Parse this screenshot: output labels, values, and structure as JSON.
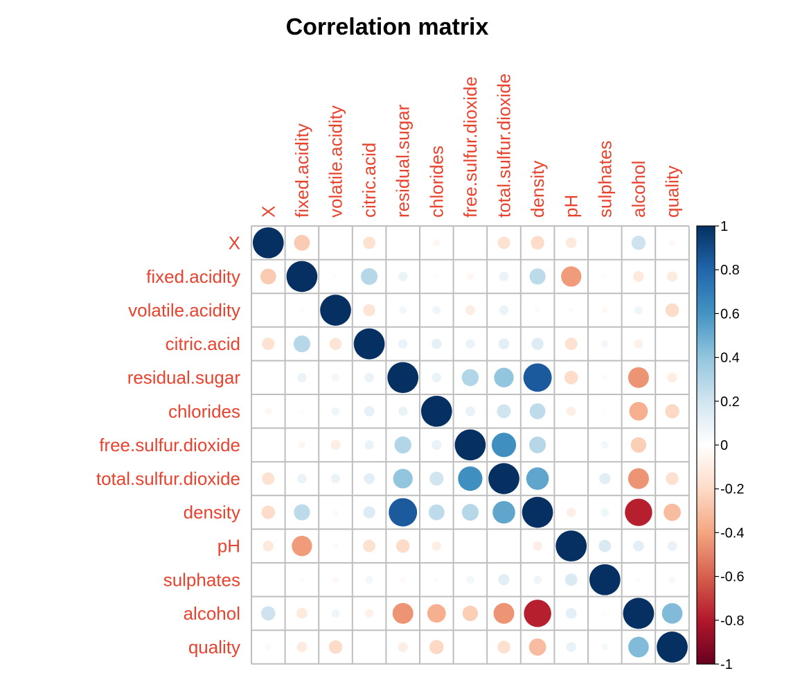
{
  "colors": {
    "label": "#E8432E",
    "grid": "#BEBEBE"
  },
  "chart_data": {
    "type": "heatmap",
    "title": "Correlation matrix",
    "variables": [
      "X",
      "fixed.acidity",
      "volatile.acidity",
      "citric.acid",
      "residual.sugar",
      "chlorides",
      "free.sulfur.dioxide",
      "total.sulfur.dioxide",
      "density",
      "pH",
      "sulphates",
      "alcohol",
      "quality"
    ],
    "value_range": [
      -1,
      1
    ],
    "legend_ticks": [
      "1",
      "0.8",
      "0.6",
      "0.4",
      "0.2",
      "0",
      "-0.2",
      "-0.4",
      "-0.6",
      "-0.8",
      "-1"
    ],
    "legend_position": "right",
    "matrix": [
      [
        1.0,
        -0.26,
        0.0,
        -0.16,
        0.0,
        -0.05,
        -0.01,
        -0.16,
        -0.19,
        -0.12,
        0.0,
        0.21,
        -0.04
      ],
      [
        -0.26,
        1.0,
        -0.02,
        0.29,
        0.09,
        0.02,
        -0.05,
        0.09,
        0.27,
        -0.43,
        -0.02,
        -0.12,
        -0.11
      ],
      [
        0.0,
        -0.02,
        1.0,
        -0.15,
        0.06,
        0.07,
        -0.1,
        0.09,
        0.03,
        -0.03,
        -0.04,
        0.07,
        -0.19
      ],
      [
        -0.16,
        0.29,
        -0.15,
        1.0,
        0.09,
        0.11,
        0.09,
        0.12,
        0.15,
        -0.16,
        0.06,
        -0.08,
        -0.01
      ],
      [
        0.0,
        0.09,
        0.06,
        0.09,
        1.0,
        0.09,
        0.3,
        0.4,
        0.84,
        -0.19,
        -0.03,
        -0.45,
        -0.1
      ],
      [
        -0.05,
        0.02,
        0.07,
        0.11,
        0.09,
        1.0,
        0.1,
        0.2,
        0.26,
        -0.09,
        0.02,
        -0.36,
        -0.21
      ],
      [
        -0.01,
        -0.05,
        -0.1,
        0.09,
        0.3,
        0.1,
        1.0,
        0.62,
        0.29,
        0.0,
        0.06,
        -0.25,
        0.01
      ],
      [
        -0.16,
        0.09,
        0.09,
        0.12,
        0.4,
        0.2,
        0.62,
        1.0,
        0.53,
        0.0,
        0.13,
        -0.45,
        -0.17
      ],
      [
        -0.19,
        0.27,
        0.03,
        0.15,
        0.84,
        0.26,
        0.29,
        0.53,
        1.0,
        -0.09,
        0.07,
        -0.78,
        -0.31
      ],
      [
        -0.12,
        -0.43,
        -0.03,
        -0.16,
        -0.19,
        -0.09,
        0.0,
        0.0,
        -0.09,
        1.0,
        0.16,
        0.12,
        0.1
      ],
      [
        0.0,
        -0.02,
        -0.04,
        0.06,
        -0.03,
        0.02,
        0.06,
        0.13,
        0.07,
        0.16,
        1.0,
        -0.02,
        0.05
      ],
      [
        0.21,
        -0.12,
        0.07,
        -0.08,
        -0.45,
        -0.36,
        -0.25,
        -0.45,
        -0.78,
        0.12,
        -0.02,
        1.0,
        0.44
      ],
      [
        -0.04,
        -0.11,
        -0.19,
        -0.01,
        -0.1,
        -0.21,
        0.01,
        -0.17,
        -0.31,
        0.1,
        0.05,
        0.44,
        1.0
      ]
    ]
  }
}
